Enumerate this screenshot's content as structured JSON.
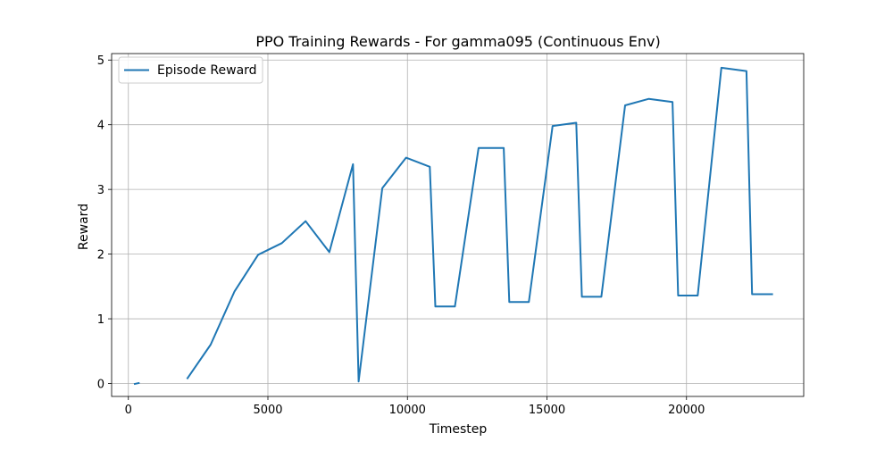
{
  "chart_data": {
    "type": "line",
    "title": "PPO Training Rewards - For gamma095 (Continuous Env)",
    "xlabel": "Timestep",
    "ylabel": "Reward",
    "xlim": [
      -600,
      24200
    ],
    "ylim": [
      -0.2,
      5.1
    ],
    "xticks": [
      0,
      5000,
      10000,
      15000,
      20000
    ],
    "xtick_labels": [
      "0",
      "5000",
      "10000",
      "15000",
      "20000"
    ],
    "yticks": [
      0,
      1,
      2,
      3,
      4,
      5
    ],
    "ytick_labels": [
      "0",
      "1",
      "2",
      "3",
      "4",
      "5"
    ],
    "grid": true,
    "legend_position": "top-left",
    "series": [
      {
        "name": "Episode Reward",
        "color": "#1f77b4",
        "segments": [
          {
            "x": [
              200,
              400
            ],
            "y": [
              -0.01,
              0.01
            ]
          },
          {
            "x": [
              2100,
              2950,
              3800,
              4650,
              5500,
              6350,
              7200,
              8050,
              8250,
              9100,
              9950,
              10800,
              11000,
              11700,
              12550,
              13450,
              13650,
              14350,
              15200,
              16050,
              16250,
              16950,
              17800,
              18650,
              19500,
              19700,
              20400,
              21250,
              22150,
              22350,
              23100
            ],
            "y": [
              0.07,
              0.6,
              1.42,
              1.99,
              2.17,
              2.51,
              2.03,
              3.39,
              0.03,
              3.02,
              3.49,
              3.35,
              1.19,
              1.19,
              3.64,
              3.64,
              1.26,
              1.26,
              3.98,
              4.03,
              1.34,
              1.34,
              4.3,
              4.4,
              4.35,
              1.36,
              1.36,
              4.88,
              4.83,
              1.38,
              1.38
            ]
          }
        ]
      }
    ]
  }
}
